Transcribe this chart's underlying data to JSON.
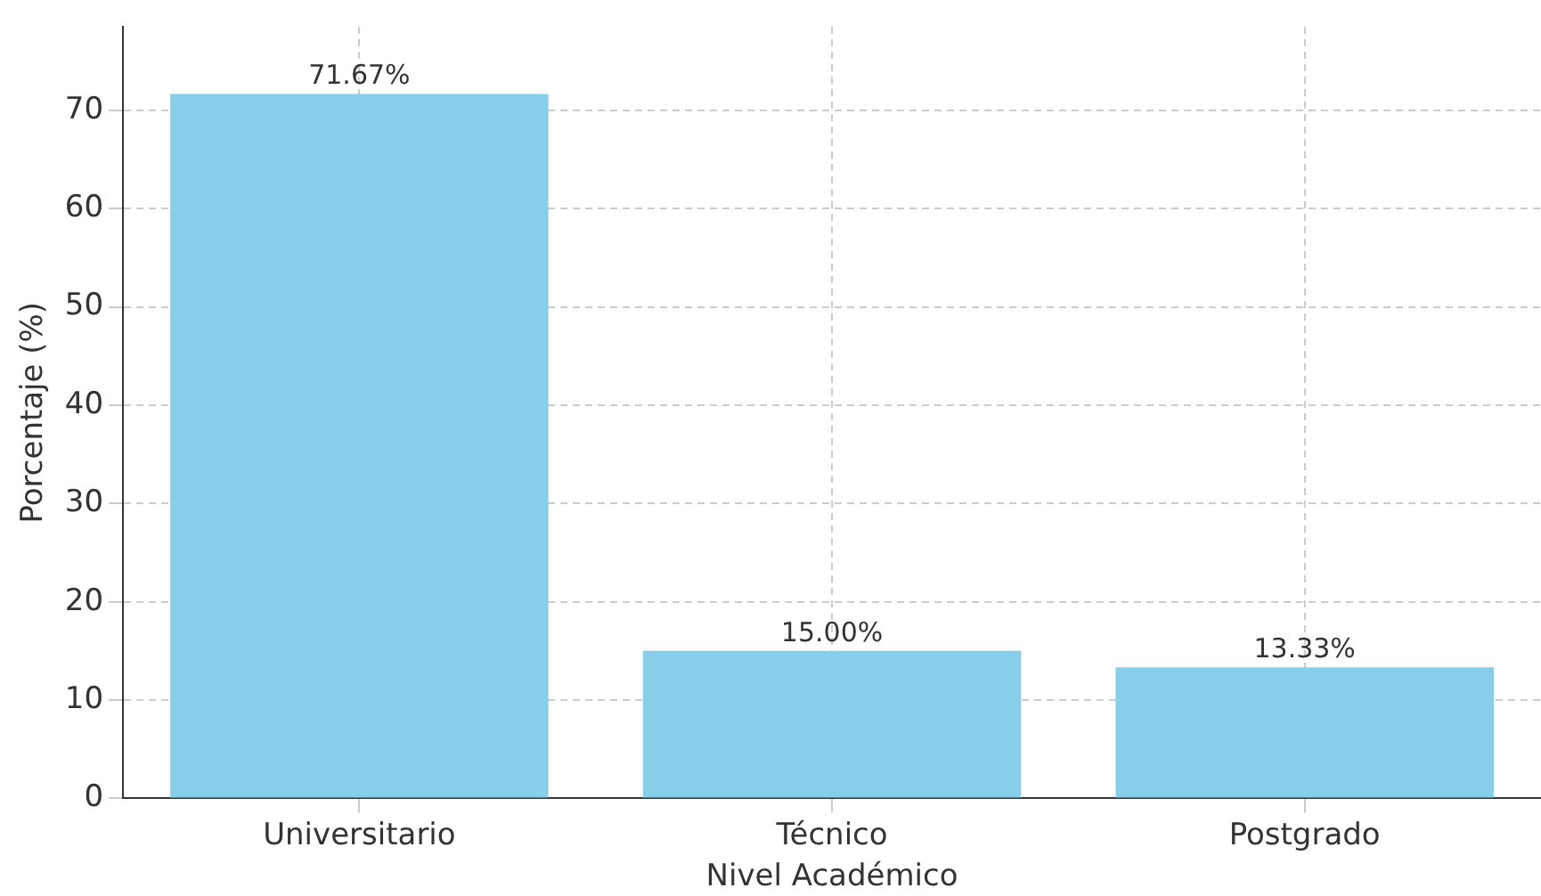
{
  "chart_data": {
    "type": "bar",
    "xlabel": "Nivel Académico",
    "ylabel": "Porcentaje (%)",
    "categories": [
      "Universitario",
      "Técnico",
      "Postgrado"
    ],
    "values": [
      71.67,
      15.0,
      13.33
    ],
    "color": "#87ceeb",
    "value_labels": [
      "71.67%",
      "15.00%",
      "13.33%"
    ],
    "ylim": [
      0,
      78.5
    ],
    "yticks": [
      0,
      10,
      20,
      30,
      40,
      50,
      60,
      70
    ],
    "grid": true,
    "legend": false
  }
}
